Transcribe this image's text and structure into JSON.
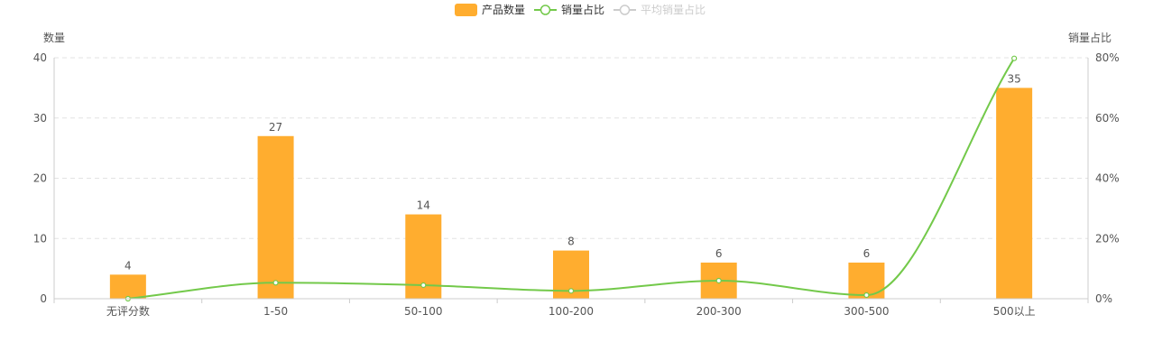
{
  "colors": {
    "bar": "#ffad2f",
    "line": "#73c94a",
    "legend_inactive": "#cccccc",
    "grid": "#e3e3e3",
    "axis": "#cccccc",
    "text": "#555555"
  },
  "legend": {
    "items": [
      {
        "label": "产品数量",
        "kind": "bar",
        "active": true
      },
      {
        "label": "销量占比",
        "kind": "line",
        "active": true
      },
      {
        "label": "平均销量占比",
        "kind": "line",
        "active": false
      }
    ]
  },
  "chart_data": {
    "type": "bar",
    "categories": [
      "无评分数",
      "1-50",
      "50-100",
      "100-200",
      "200-300",
      "300-500",
      "500以上"
    ],
    "series": [
      {
        "name": "产品数量",
        "type": "bar",
        "axis": "left",
        "values": [
          4,
          27,
          14,
          8,
          6,
          6,
          35
        ]
      },
      {
        "name": "销量占比",
        "type": "line",
        "smooth": true,
        "axis": "right",
        "values": [
          0.0,
          5.3,
          4.5,
          2.6,
          6.0,
          1.2,
          79.8
        ]
      }
    ],
    "ylabel_left": "数量",
    "ylabel_right": "销量占比",
    "ylim_left": [
      0,
      40
    ],
    "yticks_left": [
      0,
      10,
      20,
      30,
      40
    ],
    "ylim_right": [
      0,
      80
    ],
    "yticks_right": [
      "0%",
      "20%",
      "40%",
      "60%",
      "80%"
    ],
    "grid": "dashed horizontal",
    "legend_position": "top-center"
  }
}
